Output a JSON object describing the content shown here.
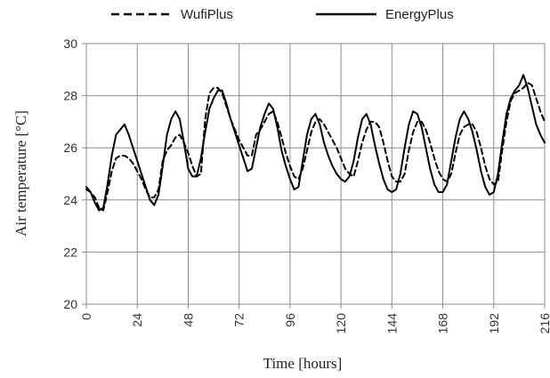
{
  "chart_data": {
    "type": "line",
    "title": "",
    "xlabel": "Time [hours]",
    "ylabel": "Air temperature [°C]",
    "xlim": [
      0,
      216
    ],
    "ylim": [
      20,
      30
    ],
    "xticks": [
      0,
      24,
      48,
      72,
      96,
      120,
      144,
      168,
      192,
      216
    ],
    "yticks": [
      20,
      22,
      24,
      26,
      28,
      30
    ],
    "grid": "on",
    "legend": "top",
    "series": [
      {
        "name": "WufiPlus",
        "style": "dashed",
        "color": "#000000",
        "x": [
          0,
          2,
          4,
          6,
          8,
          10,
          12,
          14,
          16,
          18,
          20,
          22,
          24,
          26,
          28,
          30,
          32,
          34,
          36,
          38,
          40,
          42,
          44,
          46,
          48,
          50,
          52,
          54,
          56,
          58,
          60,
          62,
          64,
          66,
          68,
          70,
          72,
          74,
          76,
          78,
          80,
          82,
          84,
          86,
          88,
          90,
          92,
          94,
          96,
          98,
          100,
          102,
          104,
          106,
          108,
          110,
          112,
          114,
          116,
          118,
          120,
          122,
          124,
          126,
          128,
          130,
          132,
          134,
          136,
          138,
          140,
          142,
          144,
          146,
          148,
          150,
          152,
          154,
          156,
          158,
          160,
          162,
          164,
          166,
          168,
          170,
          172,
          174,
          176,
          178,
          180,
          182,
          184,
          186,
          188,
          190,
          192,
          194,
          196,
          198,
          200,
          202,
          204,
          206,
          208,
          210,
          212,
          214,
          216
        ],
        "values": [
          24.4,
          24.3,
          24.1,
          23.7,
          23.6,
          24.3,
          25.1,
          25.6,
          25.7,
          25.7,
          25.6,
          25.4,
          25.1,
          24.8,
          24.4,
          24.1,
          24.1,
          24.4,
          25.5,
          25.9,
          26.1,
          26.4,
          26.5,
          26.2,
          25.8,
          25.3,
          24.9,
          25.0,
          27.1,
          28.1,
          28.3,
          28.3,
          28.1,
          27.6,
          27.1,
          26.7,
          26.3,
          26.0,
          25.7,
          25.7,
          26.5,
          26.7,
          27.0,
          27.3,
          27.4,
          27.0,
          26.4,
          25.8,
          25.3,
          24.9,
          24.8,
          25.2,
          25.9,
          26.6,
          27.0,
          27.1,
          26.9,
          26.6,
          26.3,
          26.0,
          25.6,
          25.2,
          25.0,
          24.9,
          25.5,
          26.2,
          26.7,
          27.0,
          27.0,
          26.8,
          26.2,
          25.5,
          24.9,
          24.7,
          24.7,
          25.0,
          25.9,
          26.6,
          27.0,
          27.0,
          26.7,
          26.2,
          25.6,
          25.1,
          24.8,
          24.7,
          25.0,
          25.8,
          26.5,
          26.8,
          26.9,
          26.9,
          26.6,
          26.0,
          25.3,
          24.8,
          24.6,
          24.7,
          25.9,
          27.0,
          27.8,
          28.1,
          28.2,
          28.3,
          28.5,
          28.4,
          27.9,
          27.4,
          27.0
        ]
      },
      {
        "name": "EnergyPlus",
        "style": "solid",
        "color": "#000000",
        "x": [
          0,
          2,
          4,
          6,
          8,
          10,
          12,
          14,
          16,
          18,
          20,
          22,
          24,
          26,
          28,
          30,
          32,
          34,
          36,
          38,
          40,
          42,
          44,
          46,
          48,
          50,
          52,
          54,
          56,
          58,
          60,
          62,
          64,
          66,
          68,
          70,
          72,
          74,
          76,
          78,
          80,
          82,
          84,
          86,
          88,
          90,
          92,
          94,
          96,
          98,
          100,
          102,
          104,
          106,
          108,
          110,
          112,
          114,
          116,
          118,
          120,
          122,
          124,
          126,
          128,
          130,
          132,
          134,
          136,
          138,
          140,
          142,
          144,
          146,
          148,
          150,
          152,
          154,
          156,
          158,
          160,
          162,
          164,
          166,
          168,
          170,
          172,
          174,
          176,
          178,
          180,
          182,
          184,
          186,
          188,
          190,
          192,
          194,
          196,
          198,
          200,
          202,
          204,
          206,
          208,
          210,
          212,
          214,
          216
        ],
        "values": [
          24.5,
          24.3,
          23.9,
          23.6,
          23.7,
          24.6,
          25.7,
          26.5,
          26.7,
          26.9,
          26.5,
          26.0,
          25.5,
          25.0,
          24.5,
          24.0,
          23.8,
          24.2,
          25.3,
          26.5,
          27.1,
          27.4,
          27.1,
          26.2,
          25.2,
          24.9,
          24.9,
          25.6,
          26.6,
          27.5,
          27.9,
          28.2,
          28.2,
          27.7,
          27.1,
          26.6,
          26.1,
          25.6,
          25.1,
          25.2,
          26.0,
          26.8,
          27.3,
          27.7,
          27.5,
          26.8,
          25.9,
          25.3,
          24.8,
          24.4,
          24.5,
          25.5,
          26.5,
          27.1,
          27.3,
          26.9,
          26.2,
          25.7,
          25.3,
          25.0,
          24.8,
          24.7,
          24.9,
          25.5,
          26.4,
          27.1,
          27.3,
          26.9,
          26.1,
          25.4,
          24.8,
          24.4,
          24.3,
          24.4,
          25.0,
          26.0,
          26.9,
          27.4,
          27.3,
          26.8,
          26.0,
          25.2,
          24.6,
          24.3,
          24.3,
          24.6,
          25.5,
          26.4,
          27.1,
          27.4,
          27.1,
          26.6,
          25.9,
          25.1,
          24.5,
          24.2,
          24.3,
          25.0,
          26.2,
          27.3,
          27.9,
          28.2,
          28.4,
          28.8,
          28.3,
          27.6,
          26.9,
          26.5,
          26.2
        ]
      }
    ]
  }
}
